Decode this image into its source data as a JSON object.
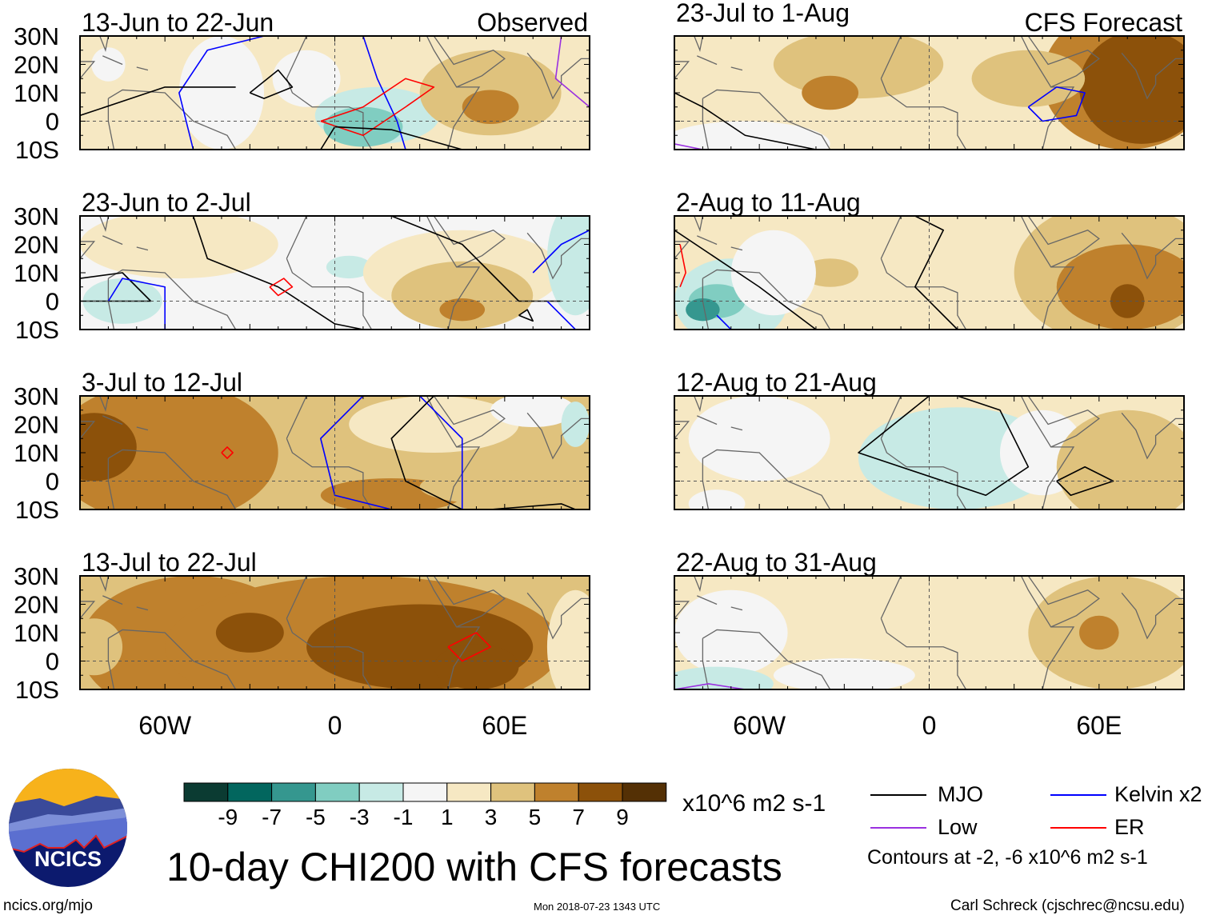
{
  "chart_data": {
    "type": "heatmap",
    "title": "10-day CHI200 with CFS forecasts",
    "variable": "CHI200 anomaly",
    "units": "x10^6 m2 s-1",
    "colorbar": {
      "tick_labels": [
        "-9",
        "-7",
        "-5",
        "-3",
        "-1",
        "1",
        "3",
        "5",
        "7",
        "9"
      ],
      "colors": [
        "#0b3b32",
        "#02665e",
        "#35978f",
        "#80cdc1",
        "#c7eae5",
        "#f5f5f5",
        "#f6e8c3",
        "#dfc27d",
        "#bf812d",
        "#8c510a",
        "#543005"
      ]
    },
    "lat_tick_labels": [
      "30N",
      "20N",
      "10N",
      "0",
      "10S"
    ],
    "lon_tick_labels": [
      "60W",
      "0",
      "60E"
    ],
    "lat_range": [
      -10,
      30
    ],
    "lon_range": [
      -90,
      90
    ],
    "column_labels": {
      "left": "Observed",
      "right": "CFS Forecast"
    },
    "panels": [
      {
        "title": "13-Jun to 22-Jun",
        "column": "left"
      },
      {
        "title": "23-Jun to 2-Jul",
        "column": "left"
      },
      {
        "title": "3-Jul to 12-Jul",
        "column": "left"
      },
      {
        "title": "13-Jul to 22-Jul",
        "column": "left"
      },
      {
        "title": "23-Jul to 1-Aug",
        "column": "right"
      },
      {
        "title": "2-Aug to 11-Aug",
        "column": "right"
      },
      {
        "title": "12-Aug to 21-Aug",
        "column": "right"
      },
      {
        "title": "22-Aug to 31-Aug",
        "column": "right"
      }
    ],
    "legend": {
      "items": [
        {
          "label": "MJO",
          "color": "#000000"
        },
        {
          "label": "Kelvin x2",
          "color": "#0000ff"
        },
        {
          "label": "Low",
          "color": "#9a30e0"
        },
        {
          "label": "ER",
          "color": "#ff0000"
        }
      ],
      "note": "Contours at -2, -6 x10^6 m2 s-1"
    }
  },
  "logo": {
    "text": "NCICS"
  },
  "footer": {
    "url": "ncics.org/mjo",
    "timestamp": "Mon 2018-07-23 1343 UTC",
    "author": "Carl Schreck (cjschrec@ncsu.edu)"
  }
}
